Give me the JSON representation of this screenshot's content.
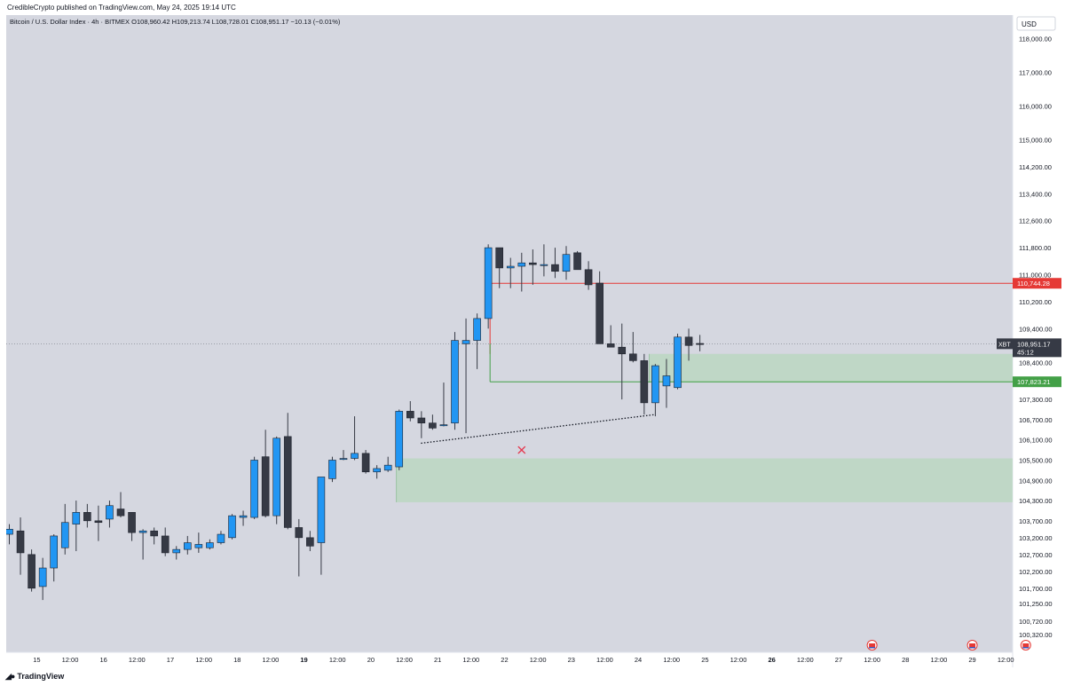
{
  "header": {
    "published": "CredibleCrypto published on TradingView.com, May 24, 2025 19:14 UTC",
    "symbol": "Bitcoin / U.S. Dollar Index · 4h · BITMEX",
    "ohlc": [
      {
        "k": "O",
        "v": "108,960.42"
      },
      {
        "k": "H",
        "v": "109,213.74"
      },
      {
        "k": "L",
        "v": "108,728.01"
      },
      {
        "k": "C",
        "v": "108,951.17"
      },
      {
        "k": "",
        "v": "−10.13 (−0.01%)"
      }
    ]
  },
  "footer": {
    "brand": "TradingView",
    "logo": "tradingview-logo-icon"
  },
  "colors": {
    "background": "#d5d7e0",
    "up": "#2196f3",
    "down": "#363a45",
    "resistance_line": "#e53935",
    "support_line": "#43a047",
    "zone_fill": "#a5d6a7",
    "marker": "#e53950"
  },
  "chart_data": {
    "type": "candlestick",
    "currency_label": "USD",
    "ylim": [
      99800,
      118700
    ],
    "y_ticks": [
      "118,000.00",
      "117,000.00",
      "116,000.00",
      "115,000.00",
      "114,200.00",
      "113,400.00",
      "112,600.00",
      "111,800.00",
      "111,000.00",
      "110,200.00",
      "109,400.00",
      "108,400.00",
      "107,300.00",
      "106,700.00",
      "106,100.00",
      "105,500.00",
      "104,900.00",
      "104,300.00",
      "103,700.00",
      "103,200.00",
      "102,700.00",
      "102,200.00",
      "101,700.00",
      "101,250.00",
      "100,720.00",
      "100,320.00"
    ],
    "x_ticks": [
      "15",
      "12:00",
      "16",
      "12:00",
      "17",
      "12:00",
      "18",
      "12:00",
      "19",
      "12:00",
      "20",
      "12:00",
      "21",
      "12:00",
      "22",
      "12:00",
      "23",
      "12:00",
      "24",
      "12:00",
      "25",
      "12:00",
      "26",
      "12:00",
      "27",
      "12:00",
      "28",
      "12:00",
      "29",
      "12:00"
    ],
    "bold_x_ticks": [
      "19",
      "26"
    ],
    "candles": [
      {
        "o": 103300,
        "h": 103600,
        "l": 103000,
        "c": 103450
      },
      {
        "o": 103400,
        "h": 103800,
        "l": 102100,
        "c": 102750
      },
      {
        "o": 102700,
        "h": 102850,
        "l": 101600,
        "c": 101700
      },
      {
        "o": 101750,
        "h": 102600,
        "l": 101350,
        "c": 102300
      },
      {
        "o": 102300,
        "h": 103300,
        "l": 101900,
        "c": 103250
      },
      {
        "o": 102900,
        "h": 104200,
        "l": 102700,
        "c": 103650
      },
      {
        "o": 103600,
        "h": 104300,
        "l": 102800,
        "c": 103950
      },
      {
        "o": 103950,
        "h": 104200,
        "l": 103500,
        "c": 103700
      },
      {
        "o": 103700,
        "h": 104150,
        "l": 103100,
        "c": 103650
      },
      {
        "o": 103750,
        "h": 104300,
        "l": 103500,
        "c": 104150
      },
      {
        "o": 104050,
        "h": 104550,
        "l": 103800,
        "c": 103850
      },
      {
        "o": 103950,
        "h": 103950,
        "l": 103100,
        "c": 103350
      },
      {
        "o": 103350,
        "h": 103450,
        "l": 102550,
        "c": 103400
      },
      {
        "o": 103400,
        "h": 103500,
        "l": 103000,
        "c": 103250
      },
      {
        "o": 103250,
        "h": 103500,
        "l": 102650,
        "c": 102750
      },
      {
        "o": 102750,
        "h": 102950,
        "l": 102550,
        "c": 102850
      },
      {
        "o": 102850,
        "h": 103250,
        "l": 102700,
        "c": 103050
      },
      {
        "o": 102900,
        "h": 103350,
        "l": 102750,
        "c": 103000
      },
      {
        "o": 102900,
        "h": 103150,
        "l": 102850,
        "c": 103050
      },
      {
        "o": 103050,
        "h": 103400,
        "l": 103000,
        "c": 103300
      },
      {
        "o": 103200,
        "h": 103900,
        "l": 103150,
        "c": 103850
      },
      {
        "o": 103800,
        "h": 104000,
        "l": 103550,
        "c": 103850
      },
      {
        "o": 103800,
        "h": 105600,
        "l": 103750,
        "c": 105500
      },
      {
        "o": 105600,
        "h": 106400,
        "l": 103800,
        "c": 103850
      },
      {
        "o": 103850,
        "h": 106200,
        "l": 103600,
        "c": 106150
      },
      {
        "o": 106200,
        "h": 106900,
        "l": 103450,
        "c": 103500
      },
      {
        "o": 103500,
        "h": 103750,
        "l": 102050,
        "c": 103200
      },
      {
        "o": 103200,
        "h": 103400,
        "l": 102800,
        "c": 102950
      },
      {
        "o": 103050,
        "h": 105000,
        "l": 102100,
        "c": 105000
      },
      {
        "o": 104950,
        "h": 105600,
        "l": 104850,
        "c": 105500
      },
      {
        "o": 105550,
        "h": 105800,
        "l": 105500,
        "c": 105550
      },
      {
        "o": 105550,
        "h": 106800,
        "l": 105500,
        "c": 105700
      },
      {
        "o": 105700,
        "h": 105800,
        "l": 105100,
        "c": 105150
      },
      {
        "o": 105150,
        "h": 105350,
        "l": 104950,
        "c": 105250
      },
      {
        "o": 105200,
        "h": 105600,
        "l": 105150,
        "c": 105350
      },
      {
        "o": 105300,
        "h": 107000,
        "l": 105200,
        "c": 106950
      },
      {
        "o": 106950,
        "h": 107250,
        "l": 106650,
        "c": 106750
      },
      {
        "o": 106750,
        "h": 106950,
        "l": 106150,
        "c": 106600
      },
      {
        "o": 106600,
        "h": 106850,
        "l": 106400,
        "c": 106450
      },
      {
        "o": 106550,
        "h": 107800,
        "l": 106500,
        "c": 106550
      },
      {
        "o": 106600,
        "h": 109300,
        "l": 106400,
        "c": 109050
      },
      {
        "o": 108950,
        "h": 109700,
        "l": 106300,
        "c": 109050
      },
      {
        "o": 109050,
        "h": 109850,
        "l": 108200,
        "c": 109700
      },
      {
        "o": 109700,
        "h": 111900,
        "l": 109400,
        "c": 111800
      },
      {
        "o": 111800,
        "h": 111800,
        "l": 110600,
        "c": 111200
      },
      {
        "o": 111200,
        "h": 111500,
        "l": 110600,
        "c": 111250
      },
      {
        "o": 111250,
        "h": 111650,
        "l": 110500,
        "c": 111350
      },
      {
        "o": 111350,
        "h": 111750,
        "l": 110700,
        "c": 111300
      },
      {
        "o": 111300,
        "h": 111900,
        "l": 110950,
        "c": 111300
      },
      {
        "o": 111300,
        "h": 111800,
        "l": 110900,
        "c": 111100
      },
      {
        "o": 111100,
        "h": 111850,
        "l": 110850,
        "c": 111600
      },
      {
        "o": 111650,
        "h": 111700,
        "l": 111200,
        "c": 111150
      },
      {
        "o": 111150,
        "h": 111400,
        "l": 110550,
        "c": 110700
      },
      {
        "o": 110750,
        "h": 111100,
        "l": 108950,
        "c": 108950
      },
      {
        "o": 108950,
        "h": 109500,
        "l": 108900,
        "c": 108850
      },
      {
        "o": 108850,
        "h": 109550,
        "l": 107300,
        "c": 108650
      },
      {
        "o": 108650,
        "h": 109300,
        "l": 108400,
        "c": 108450
      },
      {
        "o": 108450,
        "h": 108650,
        "l": 106850,
        "c": 107200
      },
      {
        "o": 107200,
        "h": 108350,
        "l": 106800,
        "c": 108300
      },
      {
        "o": 107700,
        "h": 108500,
        "l": 107050,
        "c": 108000
      },
      {
        "o": 107650,
        "h": 109250,
        "l": 107600,
        "c": 109150
      },
      {
        "o": 109150,
        "h": 109400,
        "l": 108450,
        "c": 108900
      },
      {
        "o": 108960.42,
        "h": 109213.74,
        "l": 108728.01,
        "c": 108951.17
      }
    ],
    "levels": [
      {
        "name": "resistance",
        "value": 110744.28,
        "label": "110,744.28"
      },
      {
        "name": "support",
        "value": 107823.21,
        "label": "107,823.21"
      }
    ],
    "zones": [
      {
        "from": 107800,
        "to": 108650
      },
      {
        "from": 104250,
        "to": 105550
      }
    ],
    "trendline": {
      "from": {
        "x": 18.5,
        "y": 106000
      },
      "to": {
        "x": 29.6,
        "y": 106900
      }
    },
    "marker": {
      "x": 23.4,
      "y": 105800
    },
    "current_price": {
      "symbol": "XBT",
      "label": "108,951.17",
      "countdown": "45:12"
    },
    "event_flags": 3
  }
}
